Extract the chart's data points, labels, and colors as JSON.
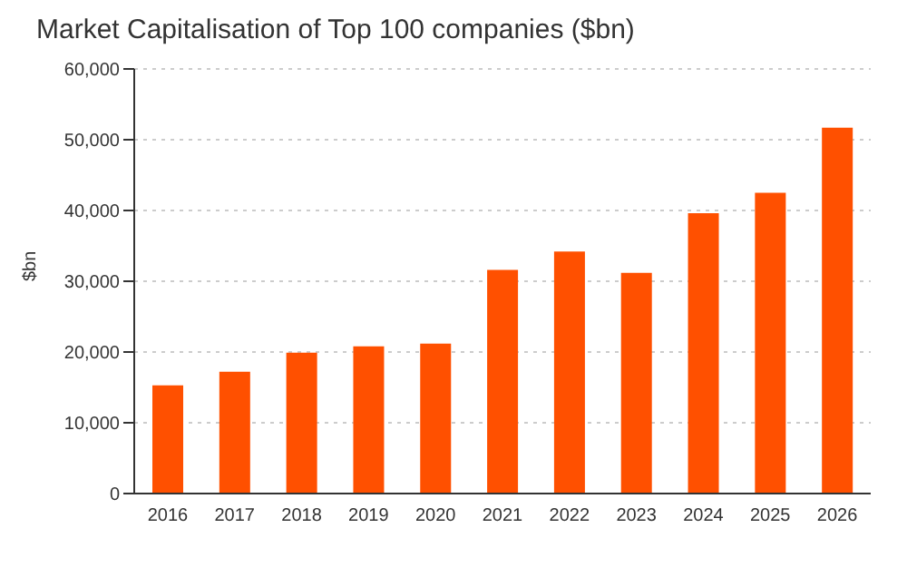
{
  "chart_data": {
    "type": "bar",
    "title": "Market Capitalisation of Top 100 companies ($bn)",
    "ylabel": "$bn",
    "categories": [
      "2016",
      "2017",
      "2018",
      "2019",
      "2020",
      "2021",
      "2022",
      "2023",
      "2024",
      "2025",
      "2026"
    ],
    "values": [
      15300,
      17200,
      19900,
      20800,
      21200,
      31600,
      34200,
      31200,
      39600,
      42500,
      51700
    ],
    "color": "#ff5000",
    "ylim": [
      0,
      60000
    ],
    "yticks": [
      0,
      {
        "value": 10000,
        "label": "10,000"
      },
      {
        "value": 20000,
        "label": "20,000"
      },
      {
        "value": 30000,
        "label": "30,000"
      },
      {
        "value": 40000,
        "label": "40,000"
      },
      {
        "value": 50000,
        "label": "50,000"
      },
      {
        "value": 60000,
        "label": "60,000"
      }
    ],
    "grid": "y"
  }
}
